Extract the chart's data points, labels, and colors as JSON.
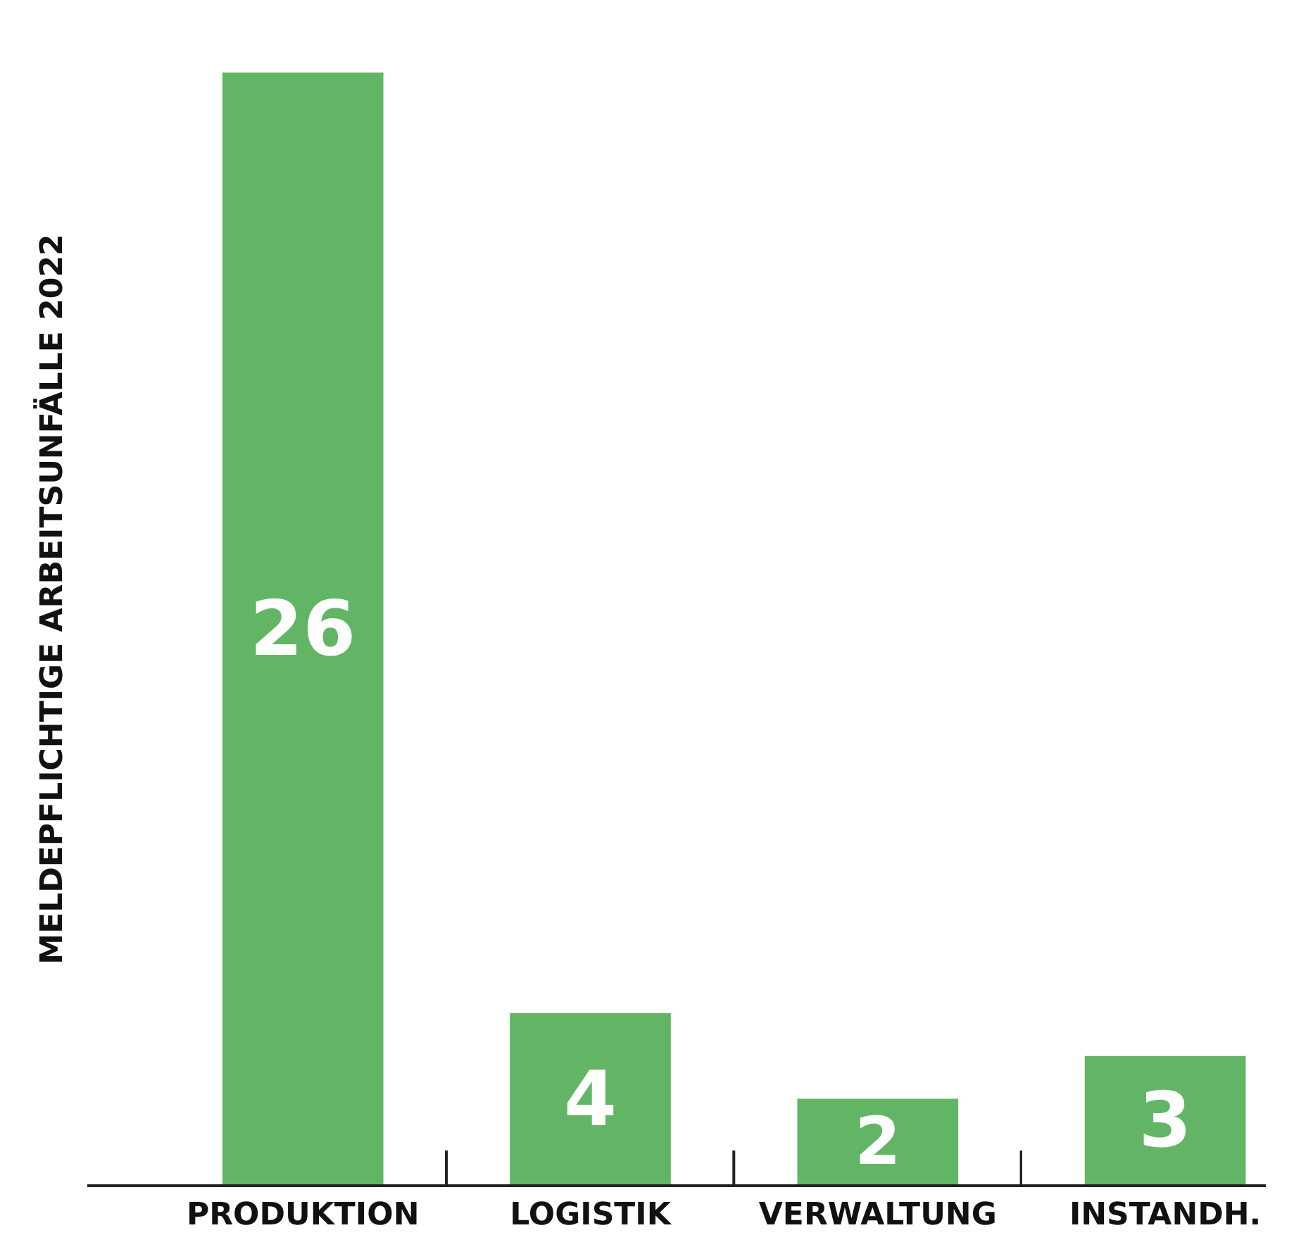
{
  "chart_data": {
    "type": "bar",
    "ylabel": "MELDEPFLICHTIGE ARBEITSUNFÄLLE 2022",
    "categories": [
      "PRODUKTION",
      "LOGISTIK",
      "VERWALTUNG",
      "INSTANDH."
    ],
    "values": [
      26,
      4,
      2,
      3
    ],
    "color": "#62b565",
    "data_labels": true,
    "tick_labels": "x",
    "grid": false,
    "legend": false
  }
}
